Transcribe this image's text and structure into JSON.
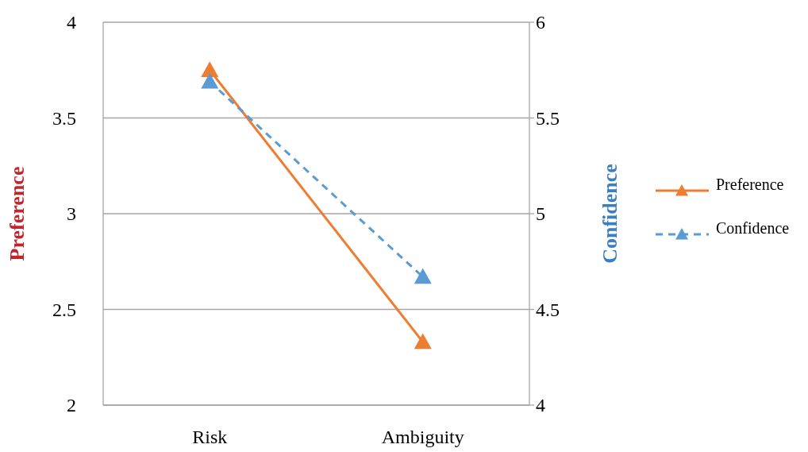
{
  "chart_data": {
    "type": "line",
    "ylabel": "Preference",
    "y2label": "Confidence",
    "categories": [
      "Risk",
      "Ambiguity"
    ],
    "series": [
      {
        "name": "Preference",
        "color": "#ed7d31",
        "values": [
          3.75,
          2.33
        ],
        "line_style": "solid"
      },
      {
        "name": "Confidence",
        "color": "#5b9bd5",
        "values": [
          5.69,
          4.67
        ],
        "axis": "y2",
        "line_style": "dashed"
      }
    ],
    "ylim": [
      2,
      4
    ],
    "yticks": [
      2,
      2.5,
      3,
      3.5,
      4
    ],
    "y2lim": [
      4,
      6
    ],
    "y2ticks": [
      4,
      4.5,
      5,
      5.5,
      6
    ],
    "grid": "y",
    "legend": "right",
    "marker": "triangle"
  }
}
